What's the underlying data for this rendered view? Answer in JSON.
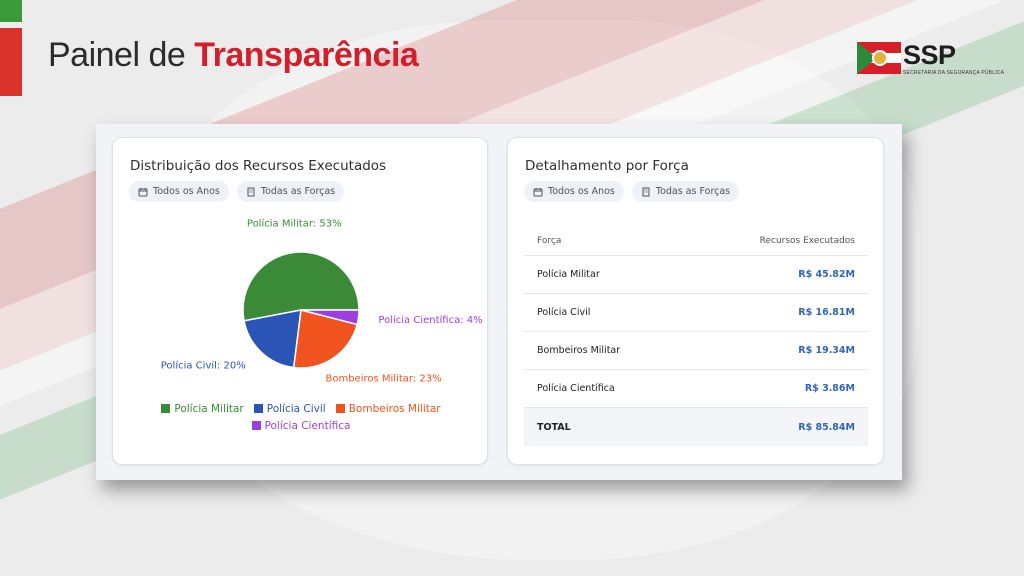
{
  "page": {
    "title_part1": "Painel de",
    "title_part2": "Transparência",
    "logo_text": "SSP",
    "logo_subtitle": "SECRETARIA DA SEGURANÇA PÚBLICA"
  },
  "colors": {
    "brand_red": "#d11f2b",
    "brand_green": "#3a9a3a",
    "value_blue": "#2f66b8"
  },
  "filters": {
    "years": "Todos os Anos",
    "forces": "Todas as Forças",
    "years_icon": "calendar-icon",
    "forces_icon": "building-icon"
  },
  "distribution_card": {
    "title": "Distribuição dos Recursos Executados"
  },
  "detail_card": {
    "title": "Detalhamento por Força",
    "columns": [
      "Força",
      "Recursos Executados"
    ],
    "rows": [
      {
        "force": "Polícia Militar",
        "value": "R$ 45.82M"
      },
      {
        "force": "Polícia Civil",
        "value": "R$ 16.81M"
      },
      {
        "force": "Bombeiros Militar",
        "value": "R$ 19.34M"
      },
      {
        "force": "Polícia Científica",
        "value": "R$ 3.86M"
      }
    ],
    "total_label": "TOTAL",
    "total_value": "R$ 85.84M"
  },
  "chart_data": {
    "type": "pie",
    "categories": [
      "Polícia Militar",
      "Polícia Civil",
      "Bombeiros Militar",
      "Polícia Científica"
    ],
    "values": [
      53,
      20,
      23,
      4
    ],
    "slice_labels": [
      "Polícia Militar: 53%",
      "Polícia Civil: 20%",
      "Bombeiros Militar: 23%",
      "Polícia Científica: 4%"
    ],
    "colors": [
      "#3a8a37",
      "#2a54b5",
      "#f0531e",
      "#9b3fe0"
    ],
    "legend_position": "bottom"
  }
}
